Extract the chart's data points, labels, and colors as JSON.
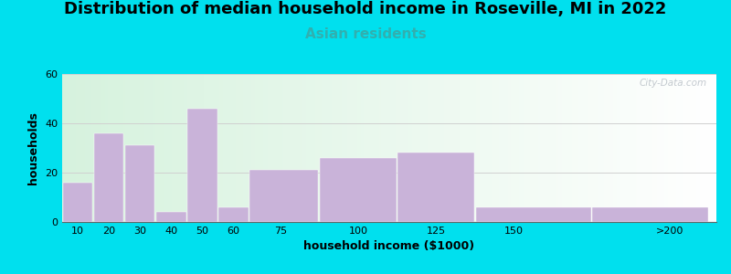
{
  "title": "Distribution of median household income in Roseville, MI in 2022",
  "subtitle": "Asian residents",
  "xlabel": "household income ($1000)",
  "ylabel": "households",
  "categories": [
    "10",
    "20",
    "30",
    "40",
    "50",
    "60",
    "75",
    "100",
    "125",
    "150",
    ">200"
  ],
  "bar_lefts": [
    5,
    15,
    25,
    35,
    45,
    55,
    65,
    87.5,
    112.5,
    137.5,
    175
  ],
  "bar_widths": [
    10,
    10,
    10,
    10,
    10,
    10,
    22.5,
    25,
    25,
    37.5,
    37.5
  ],
  "tick_positions": [
    10,
    20,
    30,
    40,
    50,
    60,
    75,
    100,
    125,
    150,
    999
  ],
  "values": [
    16,
    36,
    31,
    4,
    46,
    6,
    21,
    26,
    28,
    6,
    6
  ],
  "bar_color": "#c9b3d9",
  "ylim": [
    0,
    60
  ],
  "yticks": [
    0,
    20,
    40,
    60
  ],
  "xlim": [
    5,
    215
  ],
  "background_outer": "#00e0ee",
  "title_fontsize": 13,
  "subtitle_fontsize": 11,
  "subtitle_color": "#30b0b0",
  "axis_label_fontsize": 9,
  "tick_fontsize": 8,
  "watermark": "City-Data.com"
}
